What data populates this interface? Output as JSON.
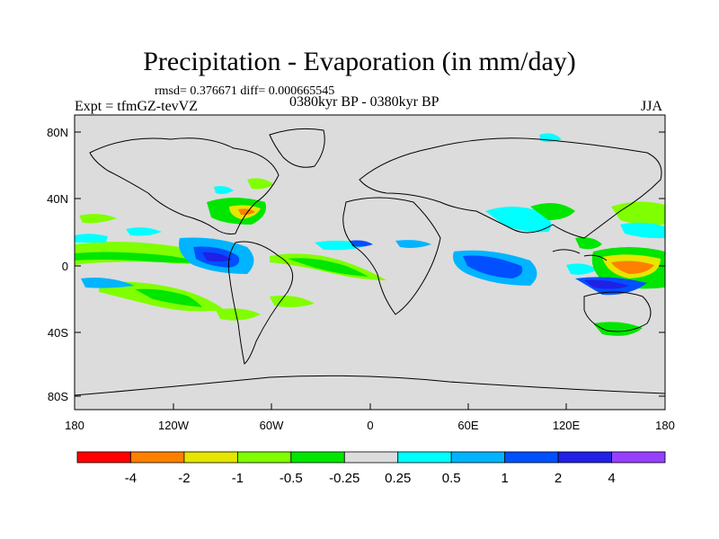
{
  "title": "Precipitation - Evaporation (in mm/day)",
  "subtitle": "rmsd= 0.376671  diff= 0.000665545",
  "left_label": "Expt = tfmGZ-tevVZ",
  "center_label": "0380kyr BP - 0380kyr BP",
  "right_label": "JJA",
  "lat_labels": [
    "80N",
    "40N",
    "0",
    "40S",
    "80S"
  ],
  "lon_labels": [
    "180",
    "120W",
    "60W",
    "0",
    "60E",
    "120E",
    "180"
  ],
  "colorbar": {
    "colors": [
      "#ff0000",
      "#ff8000",
      "#e6e600",
      "#80ff00",
      "#00e600",
      "#dcdcdc",
      "#00ffff",
      "#00b4ff",
      "#0050ff",
      "#2020e6",
      "#9640ff"
    ],
    "labels": [
      "-4",
      "-2",
      "-1",
      "-0.5",
      "-0.25",
      "0.25",
      "0.5",
      "1",
      "2",
      "4"
    ]
  }
}
